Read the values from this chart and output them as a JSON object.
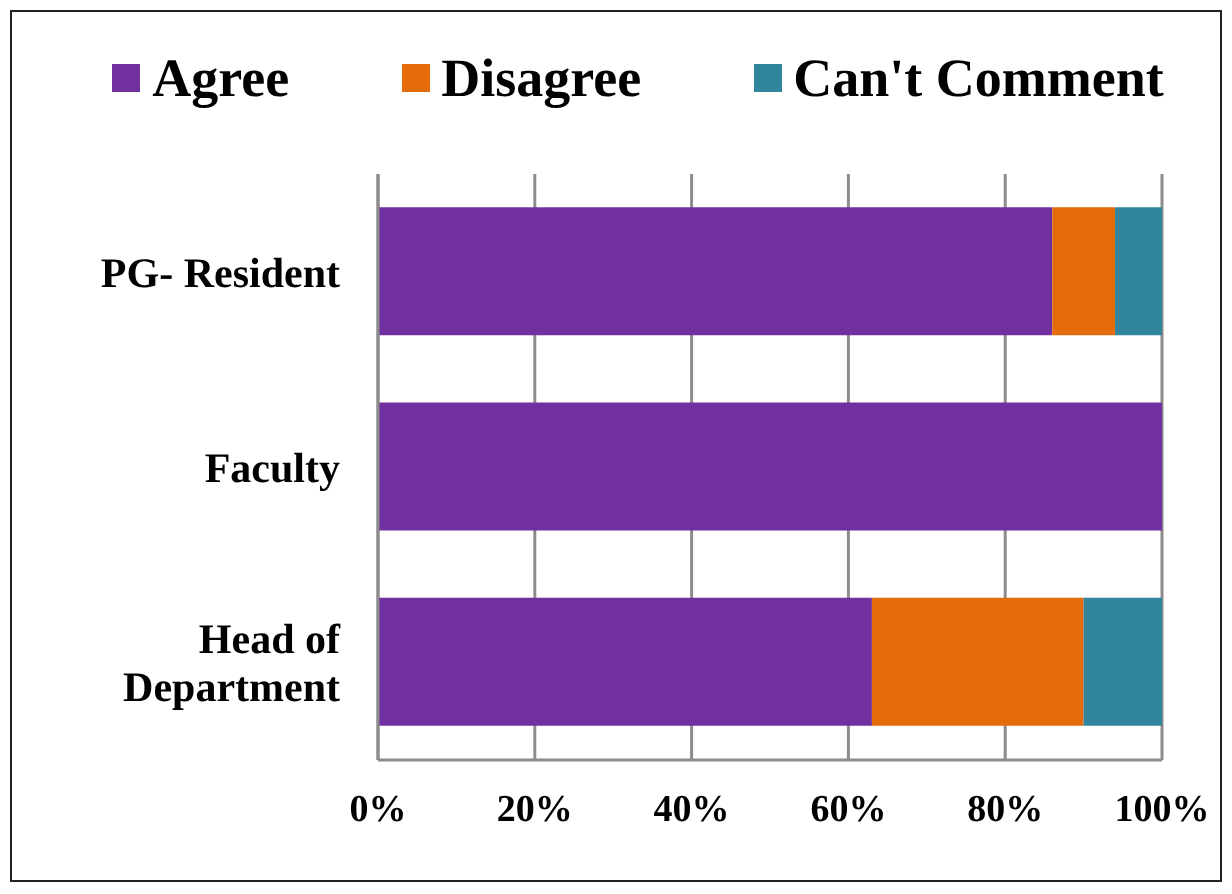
{
  "chart_data": {
    "type": "bar",
    "orientation": "horizontal",
    "stacked": true,
    "categories": [
      "PG- Resident",
      "Faculty",
      "Head of Department"
    ],
    "series": [
      {
        "name": "Agree",
        "color": "#7030a0",
        "values": [
          86,
          100,
          63
        ]
      },
      {
        "name": "Disagree",
        "color": "#e46c0a",
        "values": [
          8,
          0,
          27
        ]
      },
      {
        "name": "Can't Comment",
        "color": "#31859c",
        "values": [
          6,
          0,
          10
        ]
      }
    ],
    "xlim": [
      0,
      100
    ],
    "xticks": [
      {
        "value": 0,
        "label": "0%"
      },
      {
        "value": 20,
        "label": "20%"
      },
      {
        "value": 40,
        "label": "40%"
      },
      {
        "value": 60,
        "label": "60%"
      },
      {
        "value": 80,
        "label": "80%"
      },
      {
        "value": 100,
        "label": "100%"
      }
    ],
    "grid": "x",
    "legend": "top"
  }
}
